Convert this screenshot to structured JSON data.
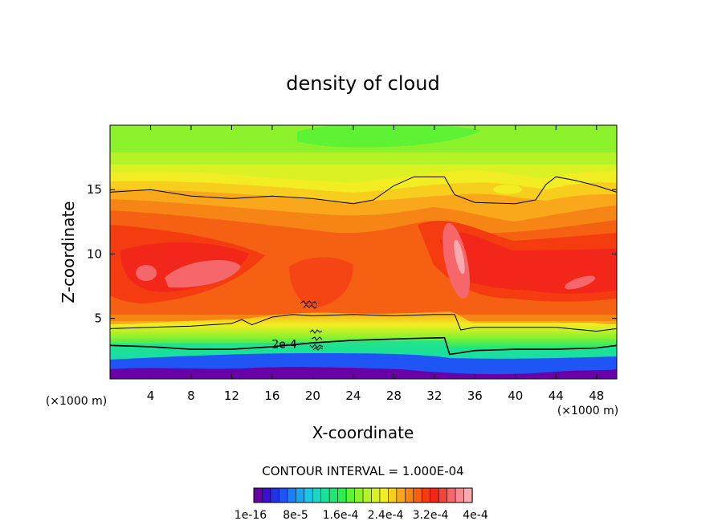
{
  "chart_data": {
    "type": "heatmap",
    "title": "density of cloud",
    "xlabel": "X-coordinate",
    "ylabel": "Z-coordinate",
    "x_unit_left": "(×1000 m)",
    "x_unit_right": "(×1000 m)",
    "xlim": [
      0,
      50
    ],
    "ylim": [
      0.3,
      20
    ],
    "x_ticks": [
      4,
      8,
      12,
      16,
      20,
      24,
      28,
      32,
      36,
      40,
      44,
      48
    ],
    "y_ticks": [
      5,
      10,
      15
    ],
    "contour_interval_text": "CONTOUR INTERVAL = 1.000E-04",
    "contour_label": "2e-4",
    "contour_label_pos": [
      17.2,
      3.0
    ],
    "colorbar_tick_labels": [
      "1e-16",
      "8e-5",
      "1.6e-4",
      "2.4e-4",
      "3.2e-4",
      "4e-4"
    ],
    "colorbar_colors": [
      "#6a00a8",
      "#3b0fcf",
      "#2233e6",
      "#1f55f5",
      "#1a7ff5",
      "#19a6f0",
      "#19c8e8",
      "#1ad8c0",
      "#1ae09a",
      "#1ee873",
      "#2bef4a",
      "#5ef235",
      "#8cf22c",
      "#b5f228",
      "#daf224",
      "#f2ec22",
      "#f7cd1e",
      "#f8a81a",
      "#f78516",
      "#f66012",
      "#f53c10",
      "#f3261a",
      "#f2443a",
      "#f5676a",
      "#f78a92",
      "#f8aaae"
    ],
    "contour_lines": [
      {
        "level": "1e-4",
        "points": [
          [
            0,
            14.8
          ],
          [
            4,
            15.0
          ],
          [
            8,
            14.5
          ],
          [
            12,
            14.3
          ],
          [
            16,
            14.5
          ],
          [
            20,
            14.3
          ],
          [
            24,
            13.9
          ],
          [
            26,
            14.2
          ],
          [
            28,
            15.3
          ],
          [
            30,
            16.0
          ],
          [
            33,
            16.0
          ],
          [
            34,
            14.6
          ],
          [
            36,
            14.0
          ],
          [
            40,
            13.9
          ],
          [
            42,
            14.2
          ],
          [
            43,
            15.4
          ],
          [
            44,
            16.0
          ],
          [
            46,
            15.7
          ],
          [
            48,
            15.3
          ],
          [
            50,
            14.8
          ]
        ]
      },
      {
        "level": "3e-4",
        "points": [
          [
            0,
            4.2
          ],
          [
            4,
            4.3
          ],
          [
            8,
            4.4
          ],
          [
            12,
            4.6
          ],
          [
            13,
            4.9
          ],
          [
            14,
            4.5
          ],
          [
            16,
            5.1
          ],
          [
            18,
            5.3
          ],
          [
            20,
            5.2
          ],
          [
            24,
            5.3
          ],
          [
            28,
            5.2
          ],
          [
            32,
            5.3
          ],
          [
            34,
            5.3
          ],
          [
            34.6,
            4.1
          ],
          [
            36,
            4.3
          ],
          [
            40,
            4.3
          ],
          [
            44,
            4.3
          ],
          [
            48,
            4.0
          ],
          [
            50,
            4.2
          ]
        ]
      },
      {
        "level": "2e-4",
        "points": [
          [
            0,
            2.9
          ],
          [
            4,
            2.8
          ],
          [
            8,
            2.6
          ],
          [
            12,
            2.6
          ],
          [
            16,
            2.8
          ],
          [
            20,
            3.1
          ],
          [
            24,
            3.3
          ],
          [
            28,
            3.4
          ],
          [
            33,
            3.5
          ],
          [
            33.5,
            2.2
          ],
          [
            36,
            2.5
          ],
          [
            40,
            2.6
          ],
          [
            44,
            2.6
          ],
          [
            48,
            2.7
          ],
          [
            50,
            2.9
          ]
        ]
      }
    ]
  }
}
